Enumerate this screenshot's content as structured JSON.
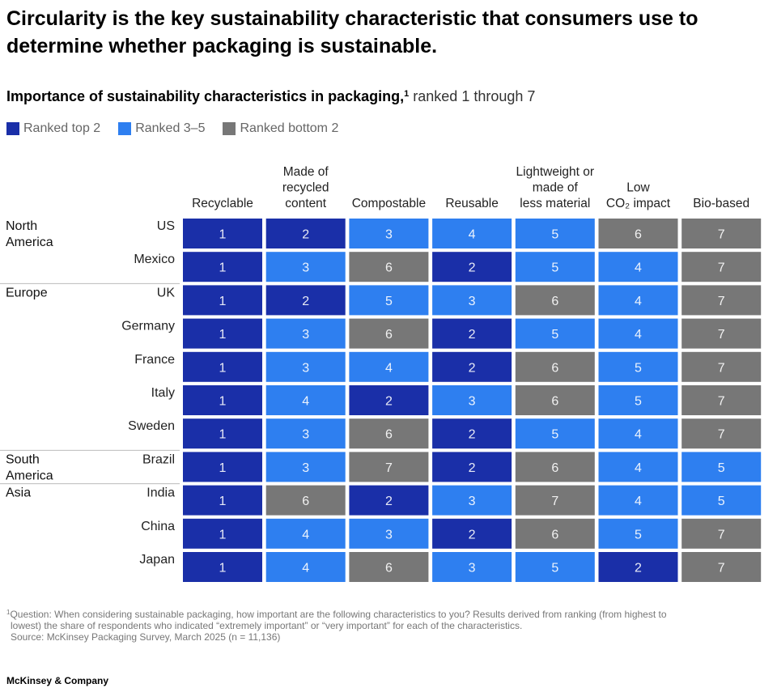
{
  "title": "Circularity is the key sustainability characteristic that consumers use to determine whether packaging is sustainable.",
  "subtitle_main": "Importance of sustainability characteristics in packaging,",
  "subtitle_sup": "1",
  "subtitle_rest": " ranked 1 through 7",
  "legend": [
    {
      "label": "Ranked top 2",
      "color": "#1a2fa8"
    },
    {
      "label": "Ranked 3–5",
      "color": "#2e7ff0"
    },
    {
      "label": "Ranked bottom 2",
      "color": "#777777"
    }
  ],
  "footnote_sup": "1",
  "footnote_line1": "Question: When considering sustainable packaging, how important are the following characteristics to you? Results derived from ranking (from highest to",
  "footnote_line2": "lowest) the share of respondents who indicated “extremely important” or “very important” for each of the characteristics.",
  "source": "Source: McKinsey Packaging Survey, March 2025 (n = 11,136)",
  "brand": "McKinsey & Company",
  "chart_data": {
    "type": "table",
    "columns": [
      [
        "Recyclable"
      ],
      [
        "Made of",
        "recycled",
        "content"
      ],
      [
        "Compostable"
      ],
      [
        "Reusable"
      ],
      [
        "Lightweight or",
        "made of",
        "less material"
      ],
      [
        "Low",
        "CO₂ impact"
      ],
      [
        "Bio-based"
      ]
    ],
    "regions": [
      {
        "name": [
          "North",
          "America"
        ],
        "countries": [
          "US",
          "Mexico"
        ]
      },
      {
        "name": [
          "Europe"
        ],
        "countries": [
          "UK",
          "Germany",
          "France",
          "Italy",
          "Sweden"
        ]
      },
      {
        "name": [
          "South",
          "America"
        ],
        "countries": [
          "Brazil"
        ]
      },
      {
        "name": [
          "Asia"
        ],
        "countries": [
          "India",
          "China",
          "Japan"
        ]
      }
    ],
    "rows": [
      {
        "country": "US",
        "ranks": [
          1,
          2,
          3,
          4,
          5,
          6,
          7
        ]
      },
      {
        "country": "Mexico",
        "ranks": [
          1,
          3,
          6,
          2,
          5,
          4,
          7
        ]
      },
      {
        "country": "UK",
        "ranks": [
          1,
          2,
          5,
          3,
          6,
          4,
          7
        ]
      },
      {
        "country": "Germany",
        "ranks": [
          1,
          3,
          6,
          2,
          5,
          4,
          7
        ]
      },
      {
        "country": "France",
        "ranks": [
          1,
          3,
          4,
          2,
          6,
          5,
          7
        ]
      },
      {
        "country": "Italy",
        "ranks": [
          1,
          4,
          2,
          3,
          6,
          5,
          7
        ]
      },
      {
        "country": "Sweden",
        "ranks": [
          1,
          3,
          6,
          2,
          5,
          4,
          7
        ]
      },
      {
        "country": "Brazil",
        "ranks": [
          1,
          3,
          7,
          2,
          6,
          4,
          5
        ]
      },
      {
        "country": "India",
        "ranks": [
          1,
          6,
          2,
          3,
          7,
          4,
          5
        ]
      },
      {
        "country": "China",
        "ranks": [
          1,
          4,
          3,
          2,
          6,
          5,
          7
        ]
      },
      {
        "country": "Japan",
        "ranks": [
          1,
          4,
          6,
          3,
          5,
          2,
          7
        ]
      }
    ],
    "color_scale": {
      "top2": "#1a2fa8",
      "mid": "#2e7ff0",
      "bottom2": "#777777"
    }
  }
}
